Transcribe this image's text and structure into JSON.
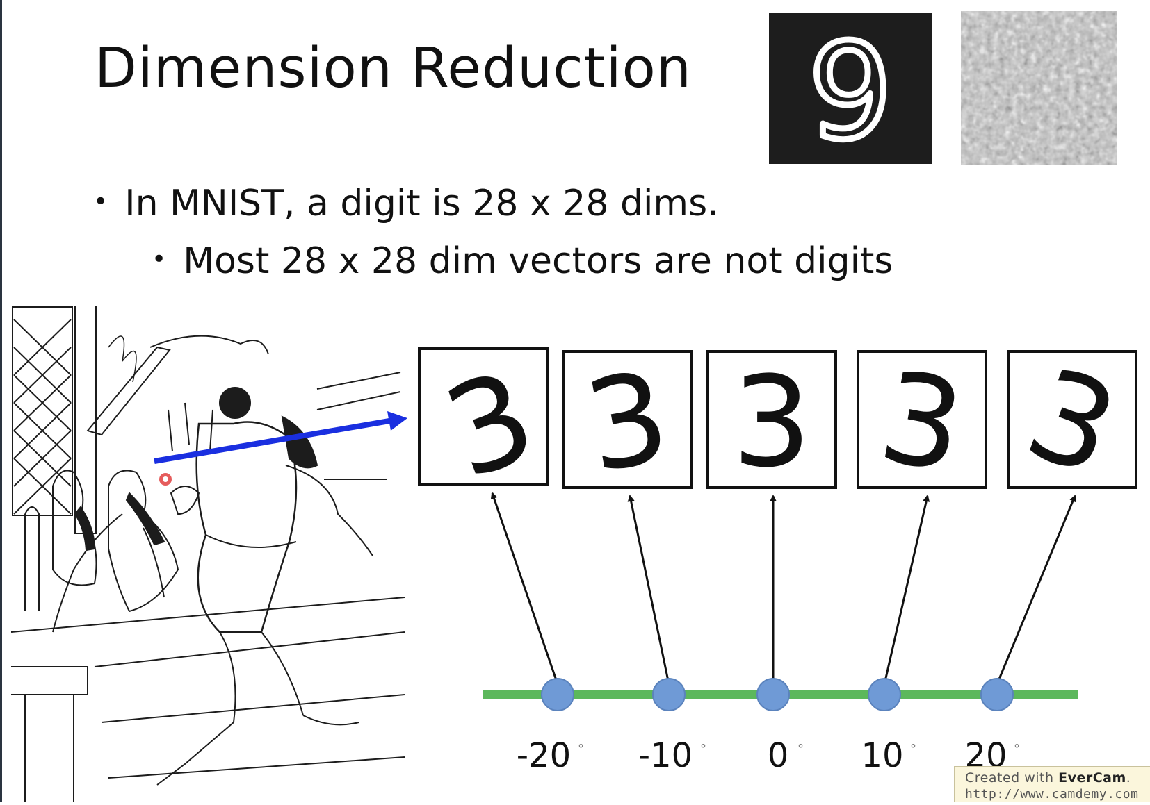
{
  "slide": {
    "title": "Dimension Reduction",
    "bullets": [
      "In MNIST, a digit is 28 x 28 dims.",
      "Most 28 x 28 dim vectors are not digits"
    ],
    "bullet_symbol": "•"
  },
  "images": {
    "digit_example": "9",
    "noise_example": "",
    "illustration": ""
  },
  "digit_boxes": [
    {
      "glyph": "3",
      "rotation_deg": -20
    },
    {
      "glyph": "3",
      "rotation_deg": -10
    },
    {
      "glyph": "3",
      "rotation_deg": 0
    },
    {
      "glyph": "3",
      "rotation_deg": 10
    },
    {
      "glyph": "3",
      "rotation_deg": 20
    }
  ],
  "axis": {
    "labels": [
      "-20",
      "-10",
      "0",
      "10",
      "20"
    ],
    "degree_mark": "°",
    "line_color": "#5cb85c",
    "point_color": "#6f9ad6"
  },
  "arrow_color": "#1a2fe0",
  "watermark": {
    "prefix": "Created with",
    "brand": "EverCam",
    "suffix": ".",
    "url": "http://www.camdemy.com"
  }
}
